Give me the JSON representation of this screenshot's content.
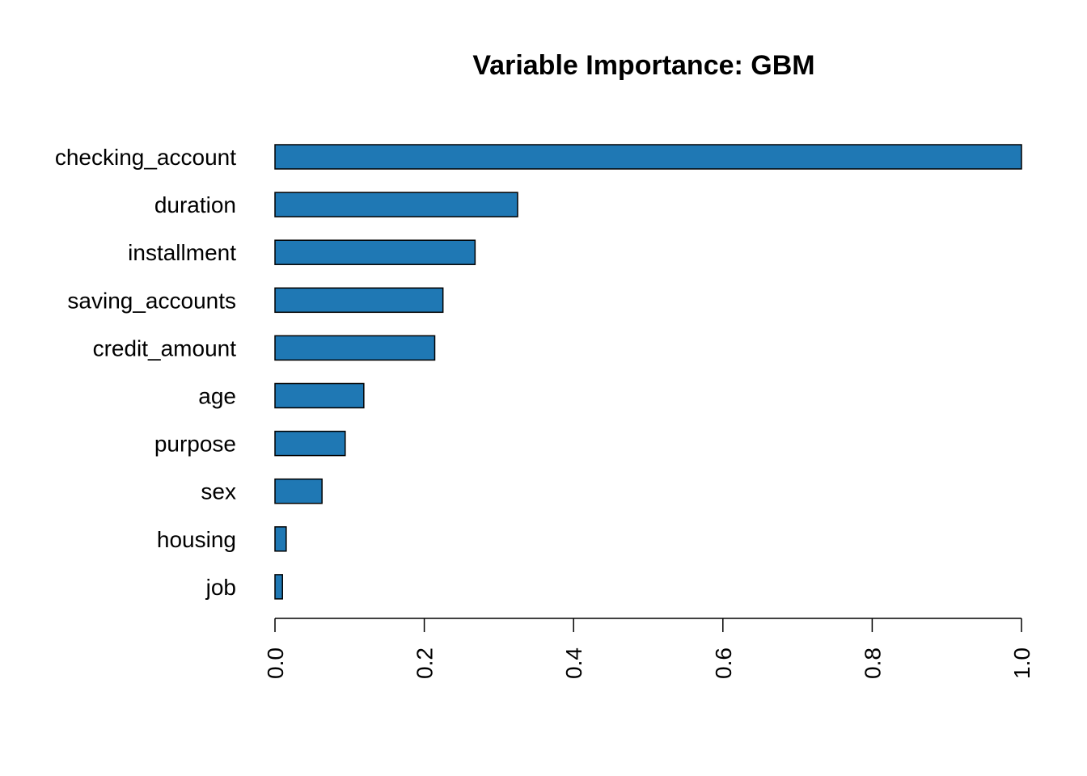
{
  "chart_data": {
    "type": "bar",
    "orientation": "horizontal",
    "title": "Variable Importance: GBM",
    "xlabel": "",
    "ylabel": "",
    "categories": [
      "checking_account",
      "duration",
      "installment",
      "saving_accounts",
      "credit_amount",
      "age",
      "purpose",
      "sex",
      "housing",
      "job"
    ],
    "values": [
      1.0,
      0.325,
      0.268,
      0.225,
      0.214,
      0.119,
      0.094,
      0.063,
      0.015,
      0.01
    ],
    "xlim": [
      0,
      1
    ],
    "xticks": [
      "0.0",
      "0.2",
      "0.4",
      "0.6",
      "0.8",
      "1.0"
    ],
    "bar_color": "#1F78B4",
    "grid": false,
    "legend": "none"
  }
}
